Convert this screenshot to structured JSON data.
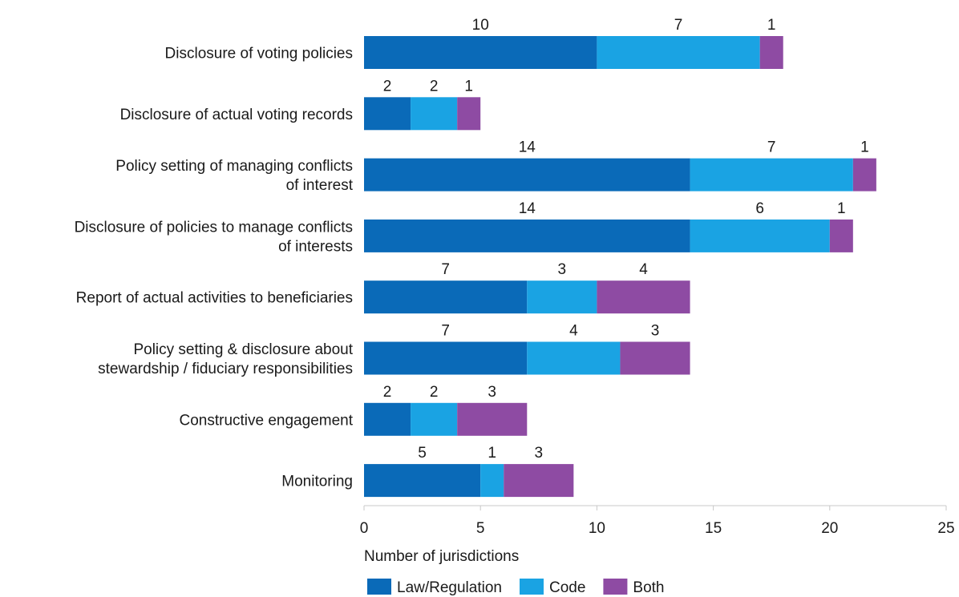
{
  "chart_data": {
    "type": "bar",
    "orientation": "horizontal",
    "stacked": true,
    "categories": [
      [
        "Disclosure of voting policies"
      ],
      [
        "Disclosure of actual voting records"
      ],
      [
        "Policy setting of managing conflicts",
        "of interest"
      ],
      [
        "Disclosure of policies to manage conflicts",
        "of interests"
      ],
      [
        "Report of actual activities to beneficiaries"
      ],
      [
        "Policy setting & disclosure about",
        "stewardship / fiduciary responsibilities"
      ],
      [
        "Constructive engagement"
      ],
      [
        "Monitoring"
      ]
    ],
    "series": [
      {
        "name": "Law/Regulation",
        "color": "#0a6ab8",
        "values": [
          10,
          2,
          14,
          14,
          7,
          7,
          2,
          5
        ]
      },
      {
        "name": "Code",
        "color": "#1aa3e3",
        "values": [
          7,
          2,
          7,
          6,
          3,
          4,
          2,
          1
        ]
      },
      {
        "name": "Both",
        "color": "#8e4ba3",
        "values": [
          1,
          1,
          1,
          1,
          4,
          3,
          3,
          3
        ]
      }
    ],
    "xlabel": "Number of jurisdictions",
    "xlim": [
      0,
      25
    ],
    "xticks": [
      0,
      5,
      10,
      15,
      20,
      25
    ],
    "grid": false,
    "legend_position": "bottom-left",
    "data_labels": true
  }
}
